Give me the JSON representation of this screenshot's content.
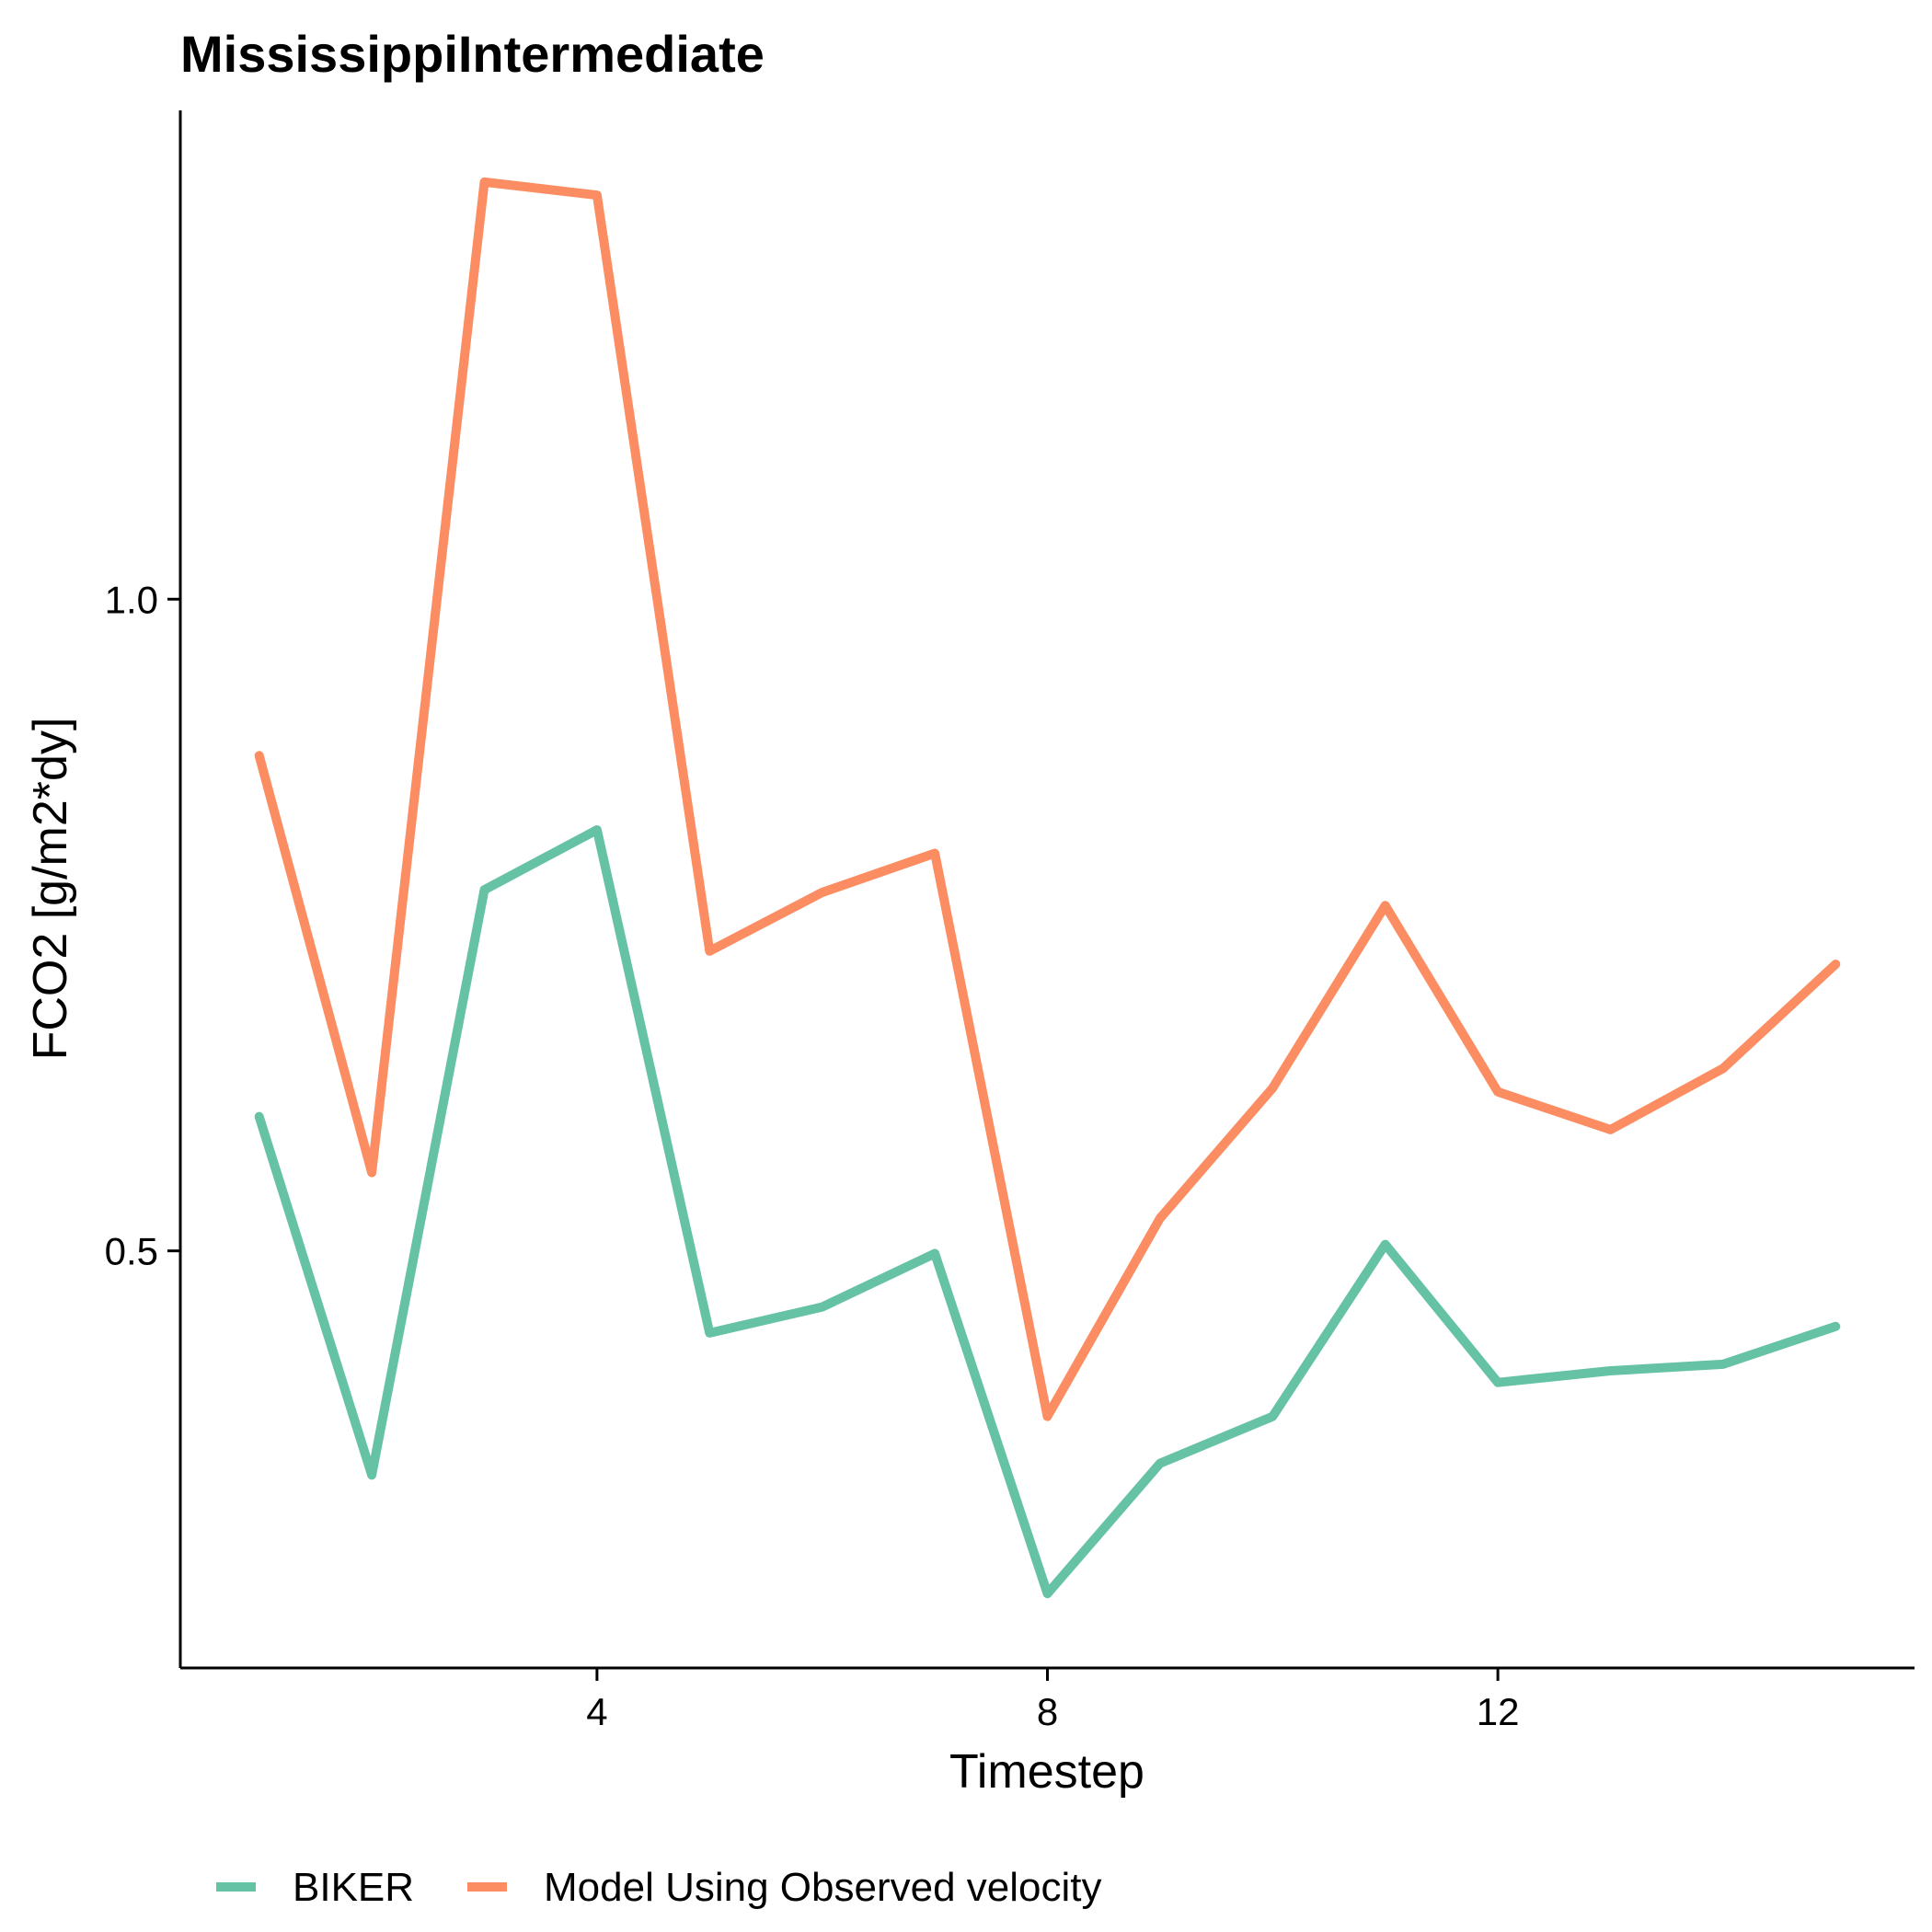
{
  "chart_data": {
    "type": "line",
    "title": "MississippiIntermediate",
    "xlabel": "Timestep",
    "ylabel": "FCO2 [g/m2*dy]",
    "x": [
      1,
      2,
      3,
      4,
      5,
      6,
      7,
      8,
      9,
      10,
      11,
      12,
      13,
      14,
      15
    ],
    "xticks": [
      4,
      8,
      12
    ],
    "xtick_labels": [
      "4",
      "8",
      "12"
    ],
    "yticks": [
      0.5,
      1.0
    ],
    "ytick_labels": [
      "0.5",
      "1.0"
    ],
    "xlim": [
      0.3,
      15.7
    ],
    "ylim": [
      0.18,
      1.375
    ],
    "grid": false,
    "legend_position": "bottom",
    "series": [
      {
        "name": "BIKER",
        "color": "#66c2a5",
        "values": [
          0.603,
          0.328,
          0.777,
          0.823,
          0.437,
          0.457,
          0.498,
          0.237,
          0.337,
          0.373,
          0.505,
          0.399,
          0.408,
          0.413,
          0.442
        ]
      },
      {
        "name": "Model Using Observed velocity",
        "color": "#fc8d62",
        "values": [
          0.88,
          0.56,
          1.32,
          1.31,
          0.73,
          0.775,
          0.805,
          0.373,
          0.525,
          0.625,
          0.765,
          0.622,
          0.593,
          0.64,
          0.72
        ]
      }
    ]
  }
}
